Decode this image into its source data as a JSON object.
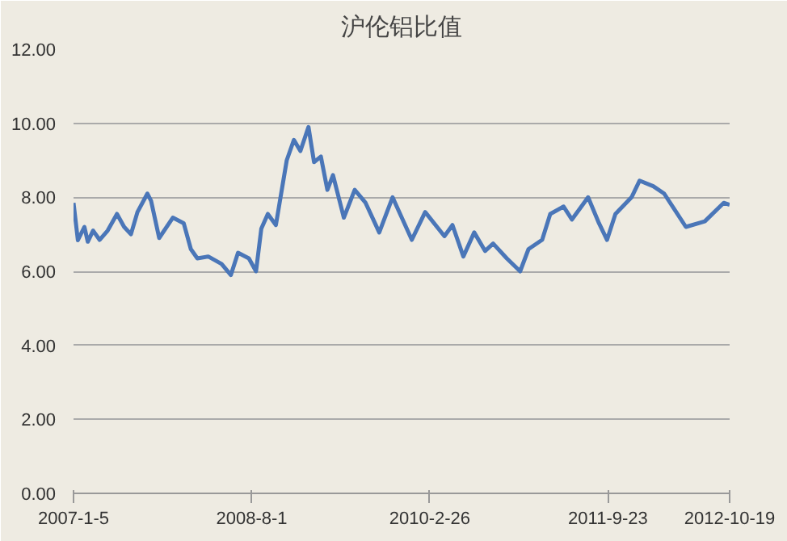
{
  "chart_data": {
    "type": "line",
    "title": "沪伦铝比值",
    "x": [
      "2007-01-05",
      "2007-01-19",
      "2007-02-09",
      "2007-02-20",
      "2007-03-09",
      "2007-03-30",
      "2007-04-25",
      "2007-05-25",
      "2007-06-17",
      "2007-07-09",
      "2007-07-30",
      "2007-08-31",
      "2007-09-12",
      "2007-10-08",
      "2007-11-21",
      "2007-12-26",
      "2008-01-18",
      "2008-02-08",
      "2008-03-14",
      "2008-04-26",
      "2008-05-26",
      "2008-06-18",
      "2008-07-23",
      "2008-08-15",
      "2008-09-01",
      "2008-09-22",
      "2008-10-18",
      "2008-11-22",
      "2008-12-15",
      "2009-01-05",
      "2009-01-31",
      "2009-02-18",
      "2009-03-12",
      "2009-04-02",
      "2009-04-20",
      "2009-05-25",
      "2009-06-29",
      "2009-08-03",
      "2009-09-16",
      "2009-10-29",
      "2009-12-30",
      "2010-02-11",
      "2010-04-14",
      "2010-05-10",
      "2010-06-14",
      "2010-07-19",
      "2010-08-23",
      "2010-09-18",
      "2010-11-01",
      "2010-12-14",
      "2011-01-10",
      "2011-02-23",
      "2011-03-21",
      "2011-05-03",
      "2011-05-30",
      "2011-07-21",
      "2011-08-25",
      "2011-09-20",
      "2011-10-17",
      "2011-12-08",
      "2012-01-03",
      "2012-02-16",
      "2012-03-22",
      "2012-05-31",
      "2012-07-31",
      "2012-09-30",
      "2012-10-19"
    ],
    "series": [
      {
        "color": "#4a76b8",
        "values": [
          7.85,
          6.84,
          7.2,
          6.8,
          7.1,
          6.85,
          7.1,
          7.55,
          7.2,
          7.0,
          7.6,
          8.1,
          7.9,
          6.9,
          7.45,
          7.3,
          6.6,
          6.35,
          6.4,
          6.2,
          5.9,
          6.5,
          6.35,
          6.0,
          7.15,
          7.55,
          7.25,
          9.0,
          9.55,
          9.25,
          9.9,
          8.95,
          9.1,
          8.2,
          8.6,
          7.45,
          8.2,
          7.85,
          7.05,
          8.0,
          6.85,
          7.6,
          6.95,
          7.25,
          6.4,
          7.05,
          6.55,
          6.75,
          6.35,
          6.0,
          6.6,
          6.85,
          7.55,
          7.75,
          7.4,
          8.0,
          7.3,
          6.85,
          7.55,
          8.0,
          8.45,
          8.3,
          8.1,
          7.2,
          7.35,
          7.85,
          7.8
        ]
      }
    ],
    "xlim": [
      "2007-01-05",
      "2012-10-19"
    ],
    "xticks": [
      {
        "value": "2007-01-05",
        "label": "2007-1-5"
      },
      {
        "value": "2008-08-01",
        "label": "2008-8-1"
      },
      {
        "value": "2010-02-26",
        "label": "2010-2-26"
      },
      {
        "value": "2011-09-23",
        "label": "2011-9-23"
      },
      {
        "value": "2012-10-19",
        "label": "2012-10-19"
      }
    ],
    "ylim": [
      0,
      12
    ],
    "yticks": [
      {
        "value": 0,
        "label": "0.00"
      },
      {
        "value": 2,
        "label": "2.00"
      },
      {
        "value": 4,
        "label": "4.00"
      },
      {
        "value": 6,
        "label": "6.00"
      },
      {
        "value": 8,
        "label": "8.00"
      },
      {
        "value": 10,
        "label": "10.00"
      },
      {
        "value": 12,
        "label": "12.00"
      }
    ],
    "grid": "y"
  }
}
